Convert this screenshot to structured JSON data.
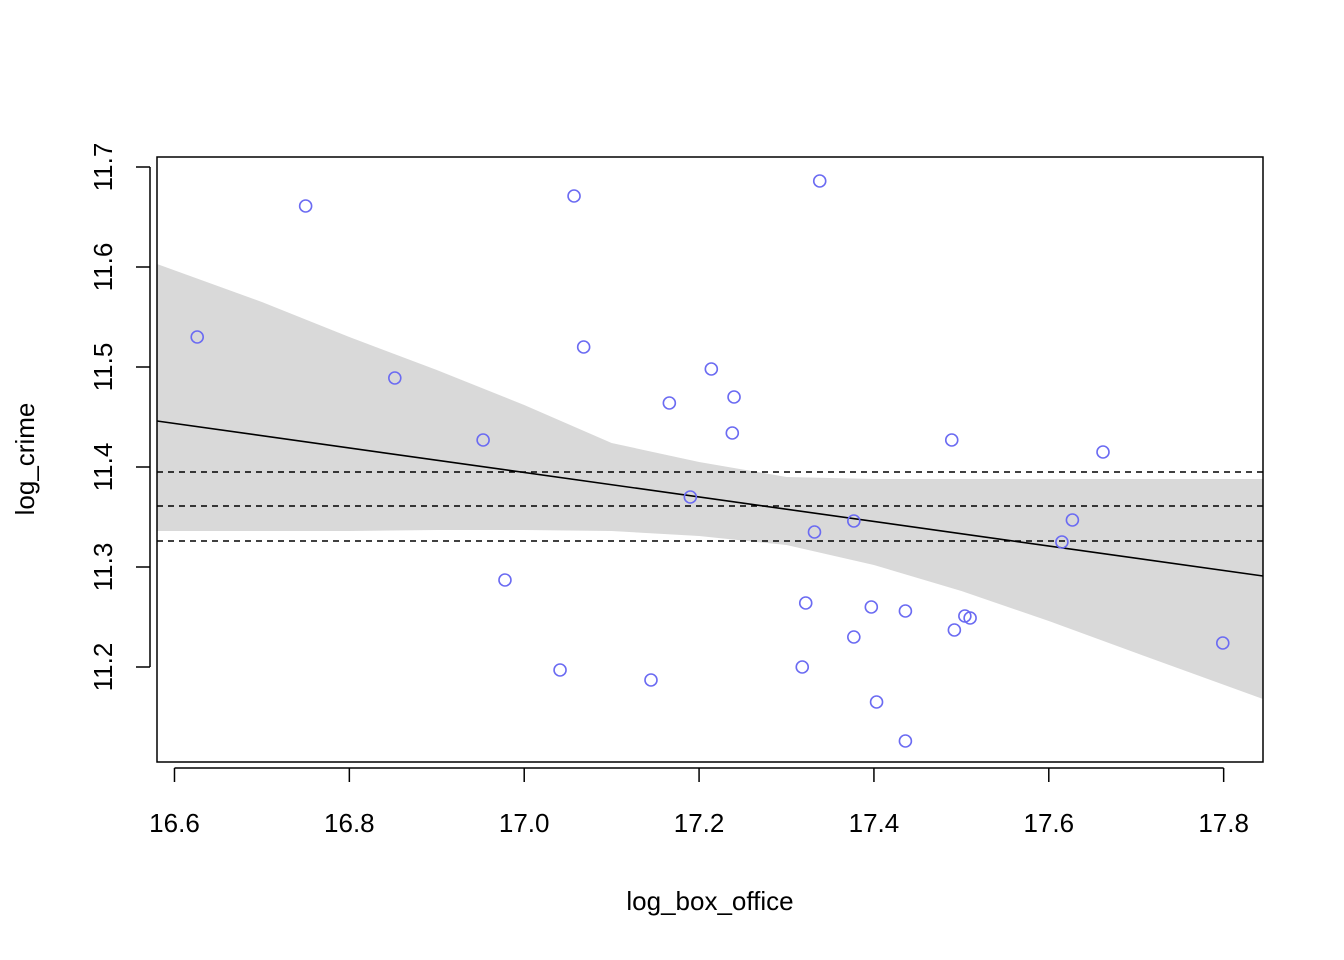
{
  "chart_data": {
    "type": "scatter",
    "title": "",
    "xlabel": "log_box_office",
    "ylabel": "log_crime",
    "xlim": [
      16.58,
      17.845
    ],
    "ylim": [
      11.105,
      11.71
    ],
    "xticks": [
      16.6,
      16.8,
      17.0,
      17.2,
      17.4,
      17.6,
      17.8
    ],
    "xtick_labels": [
      "16.6",
      "16.8",
      "17.0",
      "17.2",
      "17.4",
      "17.6",
      "17.8"
    ],
    "yticks": [
      11.2,
      11.3,
      11.4,
      11.5,
      11.6,
      11.7
    ],
    "ytick_labels": [
      "11.2",
      "11.3",
      "11.4",
      "11.5",
      "11.6",
      "11.7"
    ],
    "grid": false,
    "legend": "none",
    "points": [
      {
        "x": 16.626,
        "y": 11.53
      },
      {
        "x": 16.75,
        "y": 11.661
      },
      {
        "x": 16.852,
        "y": 11.489
      },
      {
        "x": 16.953,
        "y": 11.427
      },
      {
        "x": 16.978,
        "y": 11.287
      },
      {
        "x": 17.041,
        "y": 11.197
      },
      {
        "x": 17.057,
        "y": 11.671
      },
      {
        "x": 17.068,
        "y": 11.52
      },
      {
        "x": 17.145,
        "y": 11.187
      },
      {
        "x": 17.166,
        "y": 11.464
      },
      {
        "x": 17.19,
        "y": 11.37
      },
      {
        "x": 17.214,
        "y": 11.498
      },
      {
        "x": 17.238,
        "y": 11.434
      },
      {
        "x": 17.24,
        "y": 11.47
      },
      {
        "x": 17.318,
        "y": 11.2
      },
      {
        "x": 17.322,
        "y": 11.264
      },
      {
        "x": 17.332,
        "y": 11.335
      },
      {
        "x": 17.338,
        "y": 11.686
      },
      {
        "x": 17.377,
        "y": 11.23
      },
      {
        "x": 17.377,
        "y": 11.346
      },
      {
        "x": 17.397,
        "y": 11.26
      },
      {
        "x": 17.403,
        "y": 11.165
      },
      {
        "x": 17.436,
        "y": 11.126
      },
      {
        "x": 17.436,
        "y": 11.256
      },
      {
        "x": 17.489,
        "y": 11.427
      },
      {
        "x": 17.492,
        "y": 11.237
      },
      {
        "x": 17.504,
        "y": 11.251
      },
      {
        "x": 17.51,
        "y": 11.249
      },
      {
        "x": 17.615,
        "y": 11.325
      },
      {
        "x": 17.627,
        "y": 11.347
      },
      {
        "x": 17.662,
        "y": 11.415
      },
      {
        "x": 17.799,
        "y": 11.224
      }
    ],
    "regression_line": {
      "x": [
        16.58,
        17.845
      ],
      "y": [
        11.446,
        11.291
      ]
    },
    "confidence_band": {
      "x": [
        16.58,
        16.7,
        16.8,
        16.9,
        17.0,
        17.1,
        17.2,
        17.3,
        17.4,
        17.5,
        17.6,
        17.7,
        17.845
      ],
      "upper": [
        11.603,
        11.565,
        11.53,
        11.497,
        11.462,
        11.424,
        11.405,
        11.39,
        11.388,
        11.388,
        11.388,
        11.388,
        11.388
      ],
      "lower": [
        11.336,
        11.336,
        11.336,
        11.337,
        11.337,
        11.336,
        11.331,
        11.322,
        11.302,
        11.276,
        11.246,
        11.214,
        11.168
      ]
    },
    "reference_lines": [
      11.395,
      11.361,
      11.326
    ],
    "colors": {
      "points": "#6b6bf2",
      "band": "#d9d9d9",
      "line": "#000000",
      "reference": "#000000"
    }
  }
}
